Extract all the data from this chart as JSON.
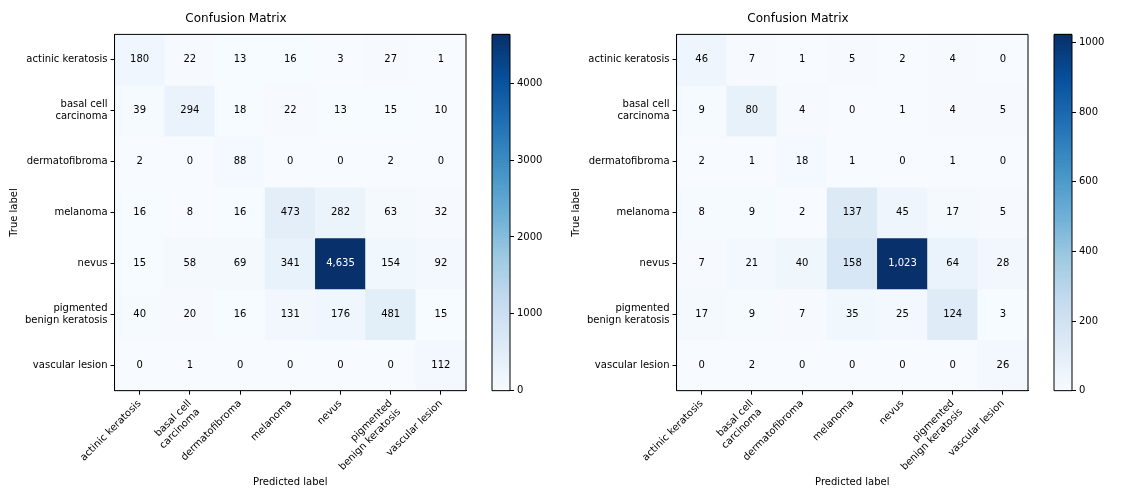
{
  "chart_data": [
    {
      "type": "heatmap",
      "title": "Confusion Matrix",
      "xlabel": "Predicted label",
      "ylabel": "True label",
      "categories": [
        "actinic keratosis",
        "basal cell\ncarcinoma",
        "dermatofibroma",
        "melanoma",
        "nevus",
        "pigmented\nbenign keratosis",
        "vascular lesion"
      ],
      "y_categories": [
        "actinic keratosis",
        "basal cell\ncarcinoma",
        "dermatofibroma",
        "melanoma",
        "nevus",
        "pigmented\nbenign keratosis",
        "vascular lesion"
      ],
      "cells": [
        [
          180,
          22,
          13,
          16,
          3,
          27,
          1
        ],
        [
          39,
          294,
          18,
          22,
          13,
          15,
          10
        ],
        [
          2,
          0,
          88,
          0,
          0,
          2,
          0
        ],
        [
          16,
          8,
          16,
          473,
          282,
          63,
          32
        ],
        [
          15,
          58,
          69,
          341,
          4635,
          154,
          92
        ],
        [
          40,
          20,
          16,
          131,
          176,
          481,
          15
        ],
        [
          0,
          1,
          0,
          0,
          0,
          0,
          112
        ]
      ],
      "cell_labels": [
        [
          "180",
          "22",
          "13",
          "16",
          "3",
          "27",
          "1"
        ],
        [
          "39",
          "294",
          "18",
          "22",
          "13",
          "15",
          "10"
        ],
        [
          "2",
          "0",
          "88",
          "0",
          "0",
          "2",
          "0"
        ],
        [
          "16",
          "8",
          "16",
          "473",
          "282",
          "63",
          "32"
        ],
        [
          "15",
          "58",
          "69",
          "341",
          "4,635",
          "154",
          "92"
        ],
        [
          "40",
          "20",
          "16",
          "131",
          "176",
          "481",
          "15"
        ],
        [
          "0",
          "1",
          "0",
          "0",
          "0",
          "0",
          "112"
        ]
      ],
      "clim": [
        0,
        4635
      ],
      "cticks": [
        0,
        1000,
        2000,
        3000,
        4000
      ]
    },
    {
      "type": "heatmap",
      "title": "Confusion Matrix",
      "xlabel": "Predicted label",
      "ylabel": "True label",
      "categories": [
        "actinic keratosis",
        "basal cell\ncarcinoma",
        "dermatofibroma",
        "melanoma",
        "nevus",
        "pigmented\nbenign keratosis",
        "vascular lesion"
      ],
      "y_categories": [
        "actinic keratosis",
        "basal cell\ncarcinoma",
        "dermatofibroma",
        "melanoma",
        "nevus",
        "pigmented\nbenign keratosis",
        "vascular lesion"
      ],
      "cells": [
        [
          46,
          7,
          1,
          5,
          2,
          4,
          0
        ],
        [
          9,
          80,
          4,
          0,
          1,
          4,
          5
        ],
        [
          2,
          1,
          18,
          1,
          0,
          1,
          0
        ],
        [
          8,
          9,
          2,
          137,
          45,
          17,
          5
        ],
        [
          7,
          21,
          40,
          158,
          1023,
          64,
          28
        ],
        [
          17,
          9,
          7,
          35,
          25,
          124,
          3
        ],
        [
          0,
          2,
          0,
          0,
          0,
          0,
          26
        ]
      ],
      "cell_labels": [
        [
          "46",
          "7",
          "1",
          "5",
          "2",
          "4",
          "0"
        ],
        [
          "9",
          "80",
          "4",
          "0",
          "1",
          "4",
          "5"
        ],
        [
          "2",
          "1",
          "18",
          "1",
          "0",
          "1",
          "0"
        ],
        [
          "8",
          "9",
          "2",
          "137",
          "45",
          "17",
          "5"
        ],
        [
          "7",
          "21",
          "40",
          "158",
          "1,023",
          "64",
          "28"
        ],
        [
          "17",
          "9",
          "7",
          "35",
          "25",
          "124",
          "3"
        ],
        [
          "0",
          "2",
          "0",
          "0",
          "0",
          "0",
          "26"
        ]
      ],
      "clim": [
        0,
        1023
      ],
      "cticks": [
        0,
        200,
        400,
        600,
        800,
        1000
      ]
    }
  ]
}
